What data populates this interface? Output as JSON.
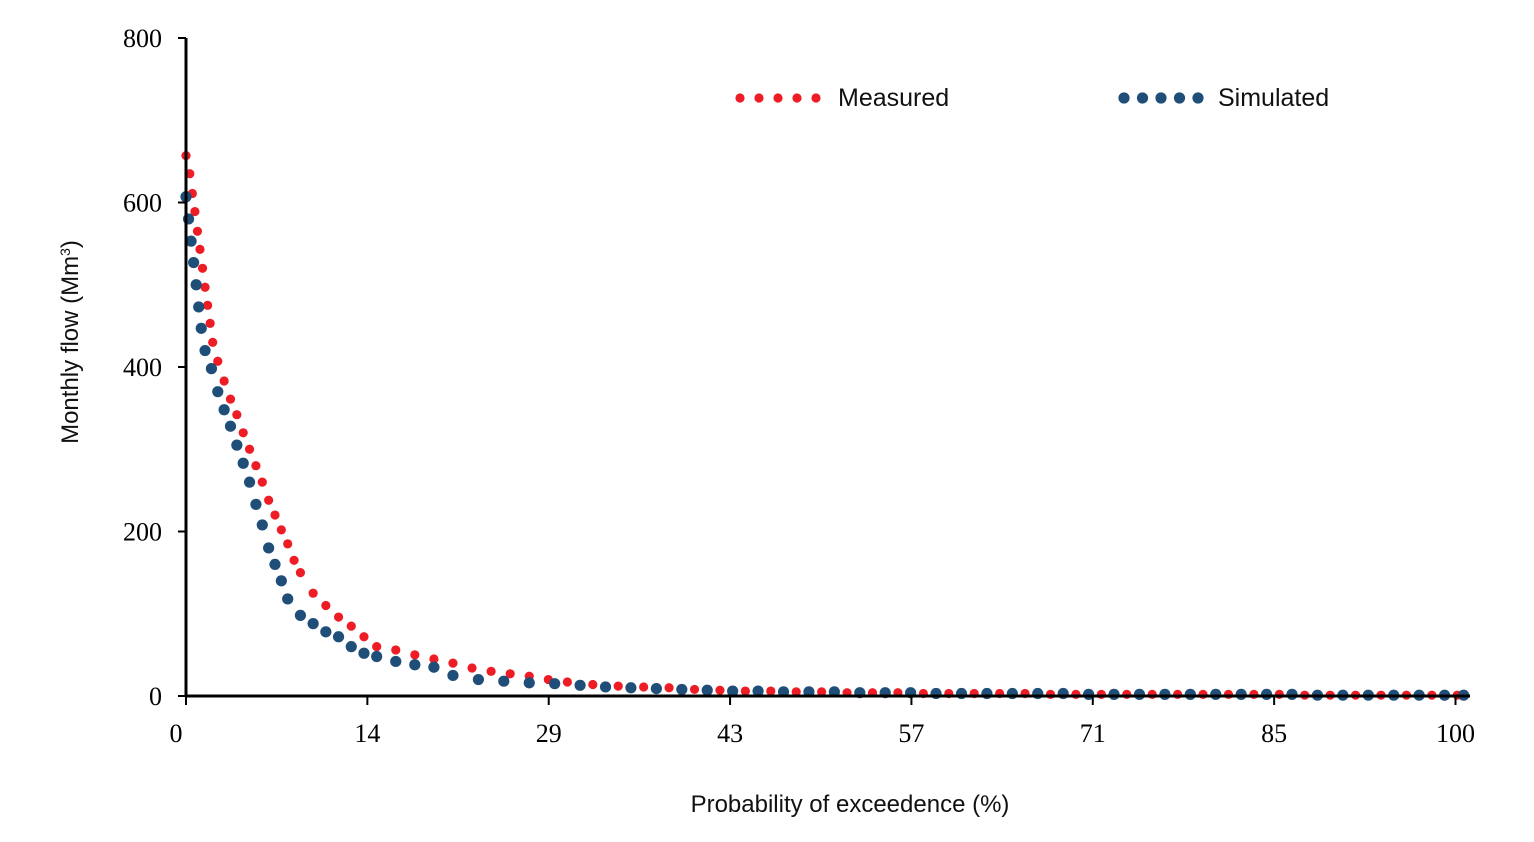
{
  "chart_data": {
    "type": "scatter",
    "title": "",
    "xlabel": "Probability of exceedence (%)",
    "ylabel_main": "Monthly flow (Mm",
    "ylabel_sup": "3",
    "ylabel_end": ")",
    "xlim": [
      0,
      101
    ],
    "ylim": [
      0,
      800
    ],
    "x_ticks": [
      0,
      14,
      29,
      43,
      57,
      71,
      85,
      100
    ],
    "y_ticks": [
      0,
      200,
      400,
      600,
      800
    ],
    "legend_position": "top-right",
    "colors": {
      "measured": "#ee1c25",
      "simulated": "#1f4e79"
    },
    "series": [
      {
        "name": "Measured",
        "color": "#ee1c25",
        "x": [
          0.0,
          0.3,
          0.5,
          0.7,
          0.9,
          1.1,
          1.3,
          1.5,
          1.7,
          1.9,
          2.1,
          2.5,
          3.0,
          3.5,
          4.0,
          4.5,
          5.0,
          5.5,
          6.0,
          6.5,
          7.0,
          7.5,
          8.0,
          8.5,
          9.0,
          10.0,
          11.0,
          12.0,
          13.0,
          14.0,
          15.0,
          16.5,
          18.0,
          19.5,
          21.0,
          22.5,
          24.0,
          25.5,
          27.0,
          28.5,
          30.0,
          32.0,
          34.0,
          36.0,
          38.0,
          40.0,
          42.0,
          44.0,
          46.0,
          48.0,
          50.0,
          52.0,
          54.0,
          56.0,
          58.0,
          60.0,
          62.0,
          64.0,
          66.0,
          68.0,
          70.0,
          72.0,
          74.0,
          76.0,
          78.0,
          80.0,
          82.0,
          84.0,
          86.0,
          88.0,
          90.0,
          92.0,
          94.0,
          96.0,
          98.0,
          100.0
        ],
        "values": [
          657,
          635,
          611,
          589,
          565,
          543,
          520,
          497,
          475,
          453,
          430,
          407,
          383,
          361,
          342,
          320,
          300,
          280,
          260,
          238,
          220,
          202,
          185,
          165,
          150,
          125,
          110,
          96,
          85,
          72,
          60,
          56,
          50,
          45,
          40,
          34,
          30,
          27,
          24,
          20,
          17,
          14,
          12,
          11,
          10,
          8,
          7,
          6,
          6,
          5,
          5,
          4,
          4,
          4,
          3,
          3,
          3,
          3,
          3,
          2,
          2,
          2,
          2,
          2,
          2,
          2,
          2,
          2,
          2,
          1,
          1,
          1,
          1,
          1,
          1,
          1
        ]
      },
      {
        "name": "Simulated",
        "color": "#1f4e79",
        "x": [
          0.0,
          0.2,
          0.4,
          0.6,
          0.8,
          1.0,
          1.2,
          1.5,
          2.0,
          2.5,
          3.0,
          3.5,
          4.0,
          4.5,
          5.0,
          5.5,
          6.0,
          6.5,
          7.0,
          7.5,
          8.0,
          9.0,
          10.0,
          11.0,
          12.0,
          13.0,
          14.0,
          15.0,
          16.5,
          18.0,
          19.5,
          21.0,
          23.0,
          25.0,
          27.0,
          29.0,
          31.0,
          33.0,
          35.0,
          37.0,
          39.0,
          41.0,
          43.0,
          45.0,
          47.0,
          49.0,
          51.0,
          53.0,
          55.0,
          57.0,
          59.0,
          61.0,
          63.0,
          65.0,
          67.0,
          69.0,
          71.0,
          73.0,
          75.0,
          77.0,
          79.0,
          81.0,
          83.0,
          85.0,
          87.0,
          89.0,
          91.0,
          93.0,
          95.0,
          97.0,
          99.0,
          100.5
        ],
        "values": [
          607,
          580,
          553,
          527,
          500,
          473,
          447,
          420,
          398,
          370,
          348,
          328,
          305,
          283,
          260,
          233,
          208,
          180,
          160,
          140,
          118,
          98,
          88,
          78,
          72,
          60,
          52,
          48,
          42,
          38,
          35,
          25,
          20,
          18,
          16,
          15,
          13,
          11,
          10,
          9,
          8,
          7,
          6,
          6,
          5,
          5,
          5,
          4,
          4,
          4,
          3,
          3,
          3,
          3,
          3,
          3,
          2,
          2,
          2,
          2,
          2,
          2,
          2,
          2,
          2,
          1,
          1,
          1,
          1,
          1,
          1,
          1
        ]
      }
    ]
  }
}
